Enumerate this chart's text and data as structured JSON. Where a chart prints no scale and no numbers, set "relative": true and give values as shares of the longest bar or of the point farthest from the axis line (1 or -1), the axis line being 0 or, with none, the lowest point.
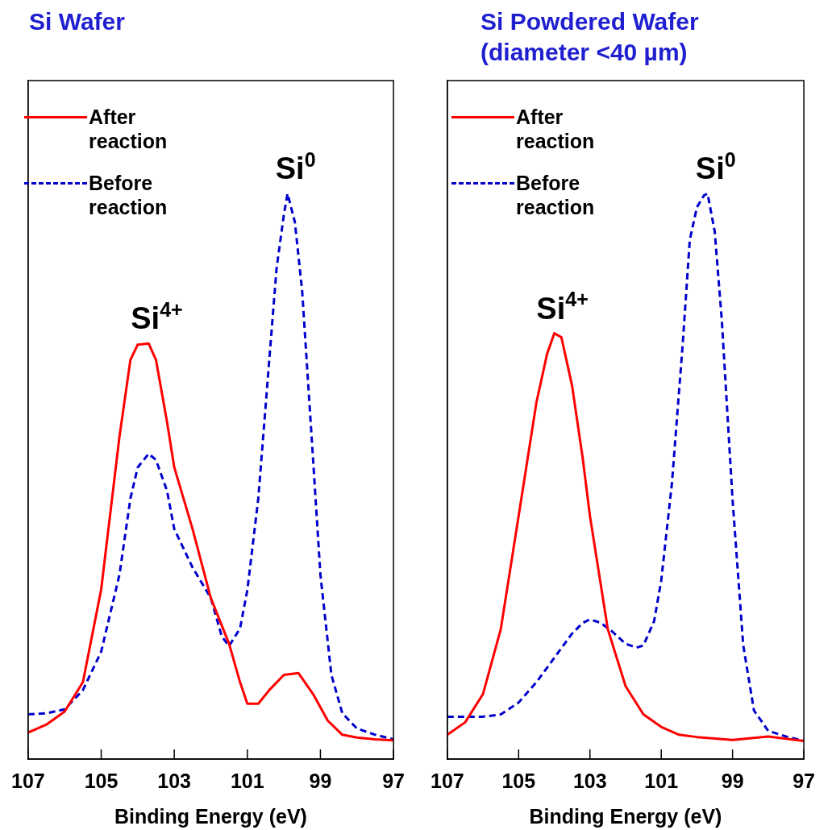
{
  "chart_data": [
    {
      "type": "line",
      "title": "Si Wafer",
      "xlabel": "Binding Energy (eV)",
      "xlim": [
        107,
        97
      ],
      "xticks": [
        107,
        105,
        103,
        101,
        99,
        97
      ],
      "relative": true,
      "tick_labels": "x",
      "grid": false,
      "legend": "top left",
      "marker": "none",
      "annotations": [
        {
          "text": "Si$^{4+}$",
          "x": 103.7,
          "y": 0.735
        },
        {
          "text": "Si$^{0}$",
          "x": 99.9,
          "y": 1.0
        }
      ],
      "series": [
        {
          "name": "After reaction",
          "color": "#ff0000",
          "line_style": "solid",
          "x": [
            107,
            106.5,
            106,
            105.5,
            105,
            104.5,
            104.2,
            104,
            103.7,
            103.5,
            103.2,
            103,
            102.5,
            102,
            101.5,
            101.2,
            101,
            100.7,
            100.4,
            100,
            99.6,
            99.2,
            98.8,
            98.4,
            98,
            97.5,
            97
          ],
          "values": [
            0.047,
            0.061,
            0.084,
            0.136,
            0.3,
            0.57,
            0.706,
            0.733,
            0.735,
            0.706,
            0.597,
            0.516,
            0.407,
            0.285,
            0.204,
            0.136,
            0.098,
            0.098,
            0.122,
            0.149,
            0.152,
            0.115,
            0.068,
            0.043,
            0.038,
            0.035,
            0.033
          ]
        },
        {
          "name": "Before reaction",
          "color": "#0000cc",
          "line_style": "dashed",
          "x": [
            107,
            106.5,
            106,
            105.5,
            105,
            104.5,
            104.2,
            104,
            103.7,
            103.5,
            103.2,
            103,
            102.5,
            102,
            101.7,
            101.5,
            101.2,
            101,
            100.7,
            100.4,
            100.2,
            100,
            99.9,
            99.7,
            99.5,
            99.2,
            99,
            98.7,
            98.4,
            98,
            97.5,
            97
          ],
          "values": [
            0.079,
            0.081,
            0.088,
            0.122,
            0.19,
            0.326,
            0.461,
            0.516,
            0.54,
            0.529,
            0.475,
            0.407,
            0.339,
            0.285,
            0.217,
            0.2,
            0.231,
            0.299,
            0.461,
            0.706,
            0.868,
            0.963,
            1.0,
            0.95,
            0.828,
            0.529,
            0.326,
            0.149,
            0.081,
            0.054,
            0.043,
            0.035
          ]
        }
      ]
    },
    {
      "type": "line",
      "title": "Si Powdered Wafer (diameter <40 µm)",
      "xlabel": "Binding Energy (eV)",
      "xlim": [
        107,
        97
      ],
      "xticks": [
        107,
        105,
        103,
        101,
        99,
        97
      ],
      "relative": true,
      "tick_labels": "x",
      "grid": false,
      "legend": "top left",
      "marker": "none",
      "annotations": [
        {
          "text": "Si$^{4+}$",
          "x": 104,
          "y": 0.753
        },
        {
          "text": "Si$^{0}$",
          "x": 99.7,
          "y": 1.0
        }
      ],
      "series": [
        {
          "name": "After reaction",
          "color": "#ff0000",
          "line_style": "solid",
          "x": [
            107,
            106.5,
            106,
            105.5,
            105,
            104.5,
            104.2,
            104,
            103.8,
            103.5,
            103.2,
            103,
            102.5,
            102,
            101.5,
            101,
            100.5,
            100,
            99,
            98,
            97.5,
            97
          ],
          "values": [
            0.043,
            0.065,
            0.115,
            0.23,
            0.43,
            0.631,
            0.717,
            0.753,
            0.746,
            0.66,
            0.531,
            0.43,
            0.23,
            0.129,
            0.079,
            0.057,
            0.043,
            0.039,
            0.034,
            0.04,
            0.036,
            0.032
          ]
        },
        {
          "name": "Before reaction",
          "color": "#0000cc",
          "line_style": "dashed",
          "x": [
            107,
            106.5,
            106,
            105.5,
            105,
            104.5,
            104,
            103.5,
            103.2,
            103,
            102.7,
            102.4,
            102,
            101.7,
            101.5,
            101.2,
            101,
            100.7,
            100.4,
            100.2,
            100,
            99.8,
            99.7,
            99.5,
            99.3,
            99,
            98.7,
            98.4,
            98,
            97.5,
            97
          ],
          "values": [
            0.075,
            0.075,
            0.075,
            0.079,
            0.1,
            0.136,
            0.179,
            0.222,
            0.241,
            0.247,
            0.241,
            0.227,
            0.204,
            0.197,
            0.201,
            0.244,
            0.316,
            0.488,
            0.732,
            0.918,
            0.976,
            0.997,
            1.0,
            0.933,
            0.775,
            0.459,
            0.201,
            0.086,
            0.05,
            0.04,
            0.032
          ]
        }
      ]
    }
  ]
}
